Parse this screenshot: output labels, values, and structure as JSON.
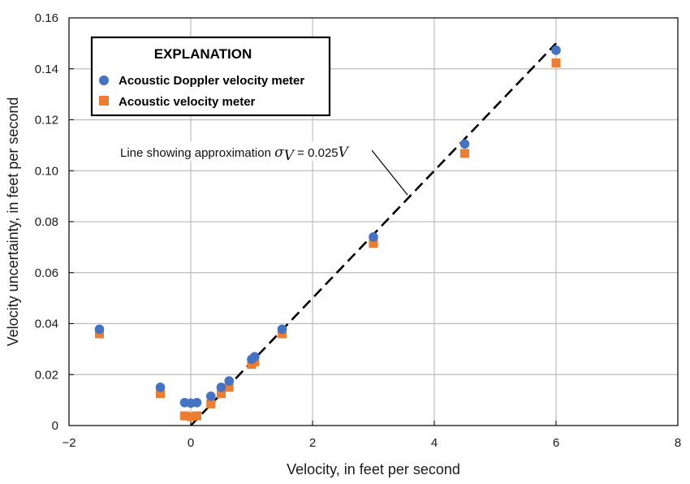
{
  "chart_data": {
    "type": "scatter",
    "title": "",
    "xlabel": "Velocity, in feet per second",
    "ylabel": "Velocity uncertainty, in feet per second",
    "xlim": [
      -2,
      8
    ],
    "ylim": [
      0,
      0.16
    ],
    "xticks": [
      -2,
      0,
      2,
      4,
      6,
      8
    ],
    "xtick_labels": [
      "−2",
      "0",
      "2",
      "4",
      "6",
      "8"
    ],
    "yticks": [
      0,
      0.02,
      0.04,
      0.06,
      0.08,
      0.1,
      0.12,
      0.14,
      0.16
    ],
    "ytick_labels": [
      "0",
      "0.02",
      "0.04",
      "0.06",
      "0.08",
      "0.10",
      "0.12",
      "0.14",
      "0.16"
    ],
    "grid": true,
    "legend": {
      "title": "EXPLANATION",
      "placement": "top-left"
    },
    "series": [
      {
        "name": "Acoustic Doppler velocity meter",
        "marker": "circle",
        "color": "#4472C4",
        "points": [
          [
            -1.5,
            0.0378
          ],
          [
            -0.5,
            0.015
          ],
          [
            -0.1,
            0.009
          ],
          [
            0.0,
            0.0088
          ],
          [
            0.1,
            0.009
          ],
          [
            0.33,
            0.0115
          ],
          [
            0.5,
            0.015
          ],
          [
            0.63,
            0.0175
          ],
          [
            1.0,
            0.026
          ],
          [
            1.05,
            0.027
          ],
          [
            1.5,
            0.0378
          ],
          [
            3.0,
            0.074
          ],
          [
            4.5,
            0.1105
          ],
          [
            6.0,
            0.1473
          ]
        ]
      },
      {
        "name": "Acoustic velocity meter",
        "marker": "square",
        "color": "#ED7D31",
        "points": [
          [
            -1.5,
            0.036
          ],
          [
            -0.5,
            0.0125
          ],
          [
            -0.1,
            0.0038
          ],
          [
            0.0,
            0.0035
          ],
          [
            0.1,
            0.0038
          ],
          [
            0.33,
            0.0085
          ],
          [
            0.5,
            0.0125
          ],
          [
            0.63,
            0.015
          ],
          [
            1.0,
            0.024
          ],
          [
            1.05,
            0.025
          ],
          [
            1.5,
            0.036
          ],
          [
            3.0,
            0.0715
          ],
          [
            4.5,
            0.1068
          ],
          [
            6.0,
            0.1423
          ]
        ]
      }
    ],
    "reference_line": {
      "style": "dashed",
      "color": "#000000",
      "slope": 0.025,
      "x_range": [
        0,
        6
      ],
      "annotation": {
        "prefix": "Line showing approximation ",
        "symbol": "σ",
        "subscript": "V",
        "equation": " = 0.025",
        "variable": "V"
      }
    }
  }
}
